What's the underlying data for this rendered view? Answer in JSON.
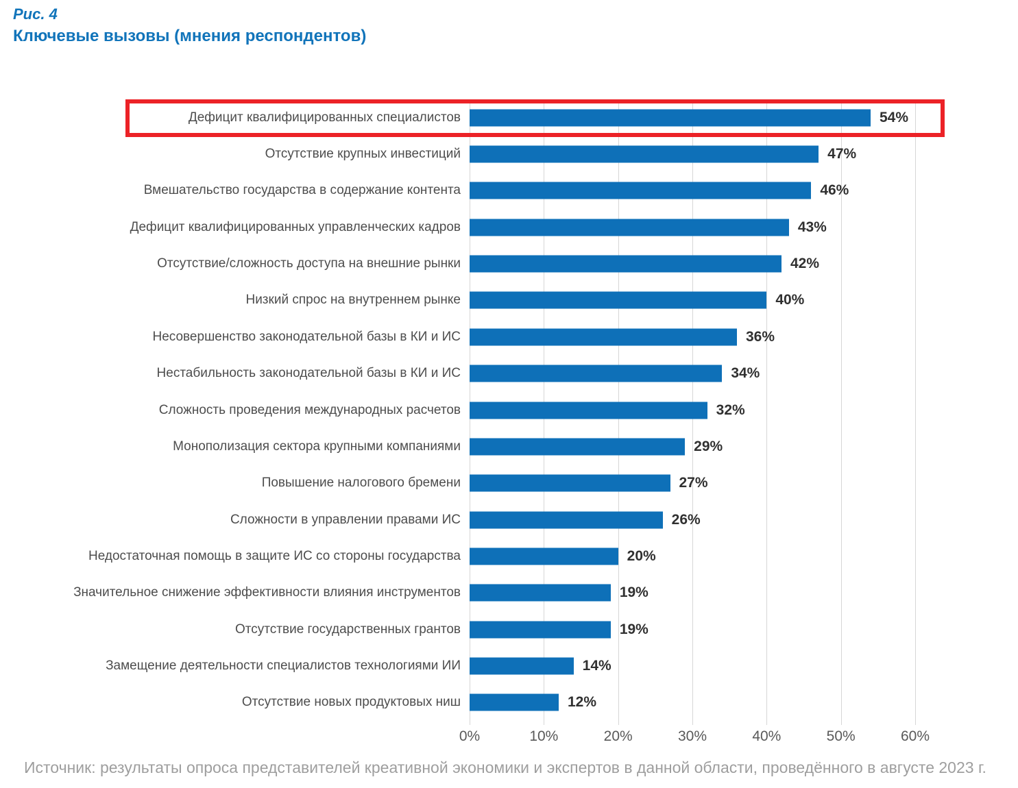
{
  "figure": {
    "label": "Рис. 4",
    "title": "Ключевые вызовы (мнения респондентов)"
  },
  "chart_data": {
    "type": "bar",
    "orientation": "horizontal",
    "title": "Ключевые вызовы (мнения респондентов)",
    "categories": [
      "Дефицит квалифицированных специалистов",
      "Отсутствие крупных инвестиций",
      "Вмешательство государства в содержание контента",
      "Дефицит квалифицированных управленческих кадров",
      "Отсутствие/сложность доступа на внешние рынки",
      "Низкий спрос на внутреннем рынке",
      "Несовершенство законодательной базы в КИ и ИС",
      "Нестабильность законодательной базы в КИ и ИС",
      "Сложность проведения международных расчетов",
      "Монополизация сектора крупными компаниями",
      "Повышение налогового бремени",
      "Сложности в управлении правами ИС",
      "Недостаточная помощь в защите ИС со стороны государства",
      "Значительное снижение эффективности влияния инструментов",
      "Отсутствие государственных грантов",
      "Замещение деятельности специалистов технологиями ИИ",
      "Отсутствие новых продуктовых ниш"
    ],
    "values": [
      54,
      47,
      46,
      43,
      42,
      40,
      36,
      34,
      32,
      29,
      27,
      26,
      20,
      19,
      19,
      14,
      12
    ],
    "unit": "%",
    "xlabel": "",
    "ylabel": "",
    "xlim": [
      0,
      60
    ],
    "xticks": [
      "0%",
      "10%",
      "20%",
      "30%",
      "40%",
      "50%",
      "60%"
    ],
    "grid": true,
    "legend": false,
    "bar_color": "#0e70b8",
    "highlight": {
      "index": 0,
      "box_color": "#ec2227"
    }
  },
  "source": "Источник: результаты опроса представителей креативной экономики и экспертов в данной области, проведённого в августе 2023 г."
}
